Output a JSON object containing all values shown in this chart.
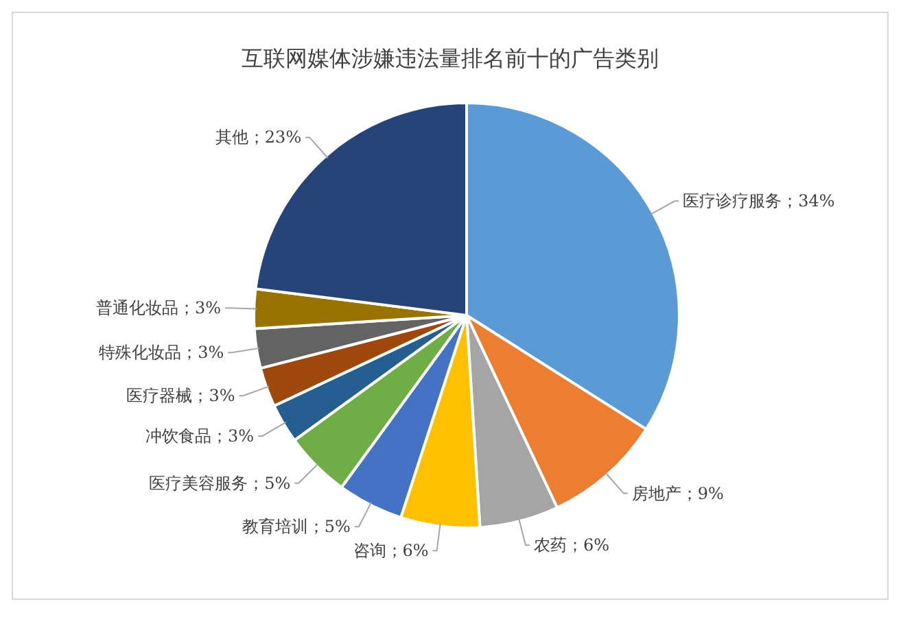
{
  "chart_data": {
    "type": "pie",
    "title": "互联网媒体涉嫌违法量排名前十的广告类别",
    "categories": [
      "医疗诊疗服务",
      "房地产",
      "农药",
      "咨询",
      "教育培训",
      "医疗美容服务",
      "冲饮食品",
      "医疗器械",
      "特殊化妆品",
      "普通化妆品",
      "其他"
    ],
    "values": [
      34,
      9,
      6,
      6,
      5,
      5,
      3,
      3,
      3,
      3,
      23
    ],
    "value_labels": [
      "；34%",
      "；9%",
      "；6%",
      "；6%",
      "；5%",
      "；5%",
      "；3%",
      "；3%",
      "；3%",
      "；3%",
      "；23%"
    ],
    "colors": [
      "#5b9bd5",
      "#ed7d31",
      "#a5a5a5",
      "#ffc000",
      "#4472c4",
      "#70ad47",
      "#255e91",
      "#9e480e",
      "#636363",
      "#997300",
      "#264478"
    ]
  }
}
